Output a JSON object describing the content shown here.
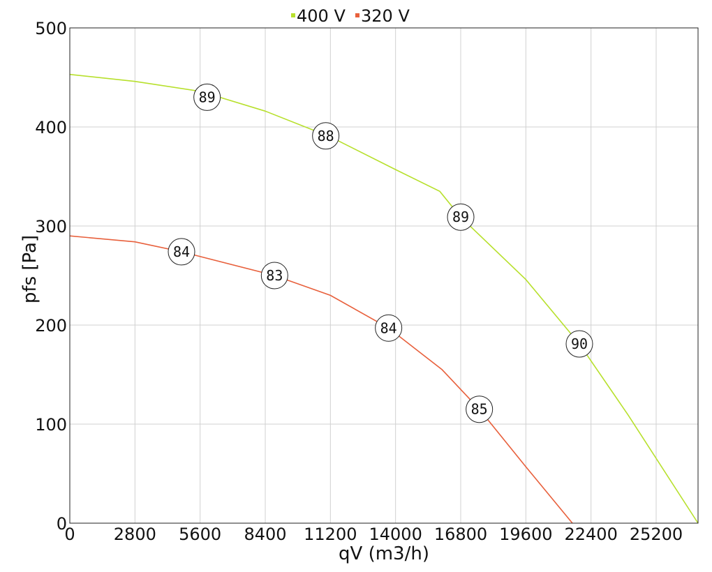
{
  "chart_data": {
    "type": "line",
    "title": "",
    "xlabel": "qV (m3/h)",
    "ylabel": "pfs [Pa]",
    "xlim": [
      0,
      27000
    ],
    "ylim": [
      0,
      500
    ],
    "xticks": [
      0,
      2800,
      5600,
      8400,
      11200,
      14000,
      16800,
      19600,
      22400,
      25200
    ],
    "yticks": [
      0,
      100,
      200,
      300,
      400,
      500
    ],
    "grid": true,
    "legend_position": "top-center",
    "series": [
      {
        "name": "400 V",
        "color": "#b7e02c",
        "points": [
          [
            0,
            453
          ],
          [
            2800,
            446
          ],
          [
            5600,
            436
          ],
          [
            8400,
            416
          ],
          [
            11200,
            390
          ],
          [
            14000,
            357
          ],
          [
            15900,
            335
          ],
          [
            16800,
            309
          ],
          [
            19600,
            246
          ],
          [
            21900,
            181
          ],
          [
            24000,
            109
          ],
          [
            27000,
            0
          ]
        ],
        "labels": [
          {
            "x": 5900,
            "y": 430,
            "text": "89"
          },
          {
            "x": 11000,
            "y": 391,
            "text": "88"
          },
          {
            "x": 16800,
            "y": 309,
            "text": "89"
          },
          {
            "x": 21900,
            "y": 181,
            "text": "90"
          }
        ]
      },
      {
        "name": "320 V",
        "color": "#e8603c",
        "points": [
          [
            0,
            290
          ],
          [
            2800,
            284
          ],
          [
            4800,
            274
          ],
          [
            8800,
            250
          ],
          [
            11200,
            230
          ],
          [
            13700,
            197
          ],
          [
            16000,
            155
          ],
          [
            17600,
            115
          ],
          [
            19600,
            57
          ],
          [
            21600,
            0
          ]
        ],
        "labels": [
          {
            "x": 4800,
            "y": 274,
            "text": "84"
          },
          {
            "x": 8800,
            "y": 250,
            "text": "83"
          },
          {
            "x": 13700,
            "y": 197,
            "text": "84"
          },
          {
            "x": 17600,
            "y": 115,
            "text": "85"
          }
        ]
      }
    ]
  }
}
